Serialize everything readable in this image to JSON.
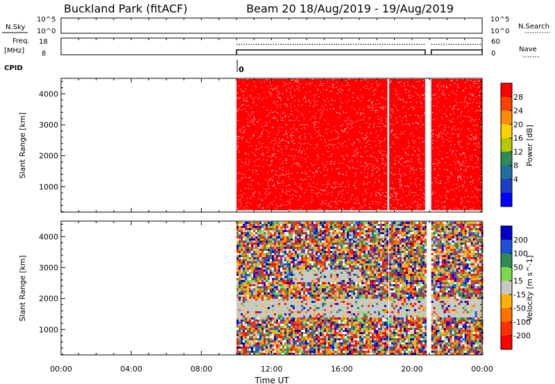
{
  "header": {
    "station": "Buckland Park (fitACF)",
    "beam_info": "Beam 20 18/Aug/2019 - 19/Aug/2019"
  },
  "top_panels": {
    "nsky_label": "N.Sky",
    "nsky_ticks": [
      "10^5",
      "10^0"
    ],
    "nsearch_label": "N.Search",
    "nsearch_ticks": [
      "10^5",
      "10^0"
    ],
    "freq_label_1": "Freq.",
    "freq_label_2": "[MHz]",
    "freq_ticks": [
      "18",
      "8"
    ],
    "nave_label": "Nave",
    "nave_ticks": [
      "60",
      "0"
    ],
    "cpid_label": "CPID",
    "cpid_value": "0"
  },
  "colors": {
    "power_fill": "#ff0000",
    "velocity_ground": "#c8c8c0",
    "axis": "#000000"
  },
  "chart_data": [
    {
      "type": "heatmap",
      "quantity": "Power",
      "ylabel": "Slant Range [km]",
      "yticks": [
        "1000",
        "2000",
        "3000",
        "4000"
      ],
      "ylim": [
        180,
        4500
      ],
      "xlim_hours": [
        0,
        24
      ],
      "data_coverage_hours": [
        [
          10.0,
          18.6
        ],
        [
          18.7,
          20.75
        ],
        [
          21.1,
          24.0
        ]
      ],
      "colorbar": {
        "label": "Power [dB]",
        "ticks": [
          "28",
          "24",
          "20",
          "16",
          "12",
          "8",
          "4"
        ],
        "colors": [
          "#ff0000",
          "#ff4000",
          "#ff8c00",
          "#ffd000",
          "#b6c800",
          "#2e8b57",
          "#1e6ea0",
          "#1e3ec8",
          "#0000ff"
        ]
      }
    },
    {
      "type": "heatmap",
      "quantity": "Velocity",
      "ylabel": "Slant Range [km]",
      "yticks": [
        "1000",
        "2000",
        "3000",
        "4000"
      ],
      "ylim": [
        180,
        4500
      ],
      "xlim_hours": [
        0,
        24
      ],
      "data_coverage_hours": [
        [
          10.0,
          18.6
        ],
        [
          18.7,
          20.75
        ],
        [
          21.1,
          24.0
        ]
      ],
      "colorbar": {
        "label": "Velocity [m s^-1]",
        "ticks": [
          "200",
          "100",
          "50",
          "15",
          "-15",
          "-50",
          "-100",
          "-200"
        ],
        "colors": [
          "#0000c8",
          "#1e50dc",
          "#2e8b57",
          "#7bd84a",
          "#c8c8c0",
          "#ffb000",
          "#ff7000",
          "#ff3000",
          "#ff0000"
        ]
      }
    }
  ],
  "xaxis": {
    "label": "Time UT",
    "ticks": [
      "00:00",
      "04:00",
      "08:00",
      "12:00",
      "16:00",
      "20:00",
      "00:00"
    ]
  }
}
